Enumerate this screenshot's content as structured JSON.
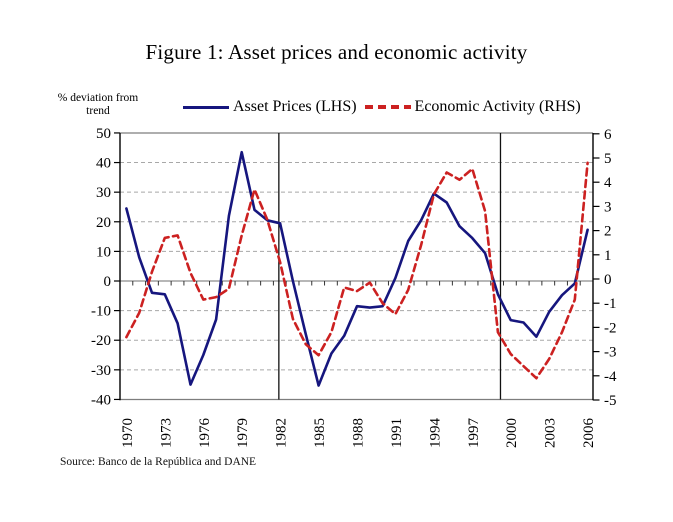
{
  "title": "Figure 1: Asset prices and economic activity",
  "y_axis_note": {
    "line1": "% deviation from",
    "line2": "trend"
  },
  "legend": {
    "items": [
      {
        "label": "Asset Prices (LHS)",
        "color": "#16167e",
        "style": "solid"
      },
      {
        "label": "Economic Activity (RHS)",
        "color": "#cc2121",
        "style": "dashed"
      }
    ]
  },
  "source_note": "Source: Banco de la República and DANE",
  "chart_data": {
    "type": "line",
    "title": "Figure 1: Asset prices and economic activity",
    "ylabel_left": "% deviation from trend",
    "x": [
      1970,
      1971,
      1972,
      1973,
      1974,
      1975,
      1976,
      1977,
      1978,
      1979,
      1980,
      1981,
      1982,
      1983,
      1984,
      1985,
      1986,
      1987,
      1988,
      1989,
      1990,
      1991,
      1992,
      1993,
      1994,
      1995,
      1996,
      1997,
      1998,
      1999,
      2000,
      2001,
      2002,
      2003,
      2004,
      2005,
      2006
    ],
    "x_tick_labels": [
      "1970",
      "1973",
      "1976",
      "1979",
      "1982",
      "1985",
      "1988",
      "1991",
      "1994",
      "1997",
      "2000",
      "2003",
      "2006"
    ],
    "series": [
      {
        "name": "Asset Prices (LHS)",
        "axis": "left",
        "color": "#16167e",
        "style": "solid",
        "values": [
          24.5,
          8,
          -4,
          -4.5,
          -14.3,
          -35,
          -25,
          -13,
          22,
          43.5,
          24,
          20.5,
          19.5,
          0,
          -18,
          -35.3,
          -24.5,
          -18.5,
          -8.5,
          -9,
          -8.5,
          1,
          13.5,
          20.5,
          29.5,
          26.5,
          18.5,
          14.5,
          9.4,
          -4.5,
          -13.2,
          -14,
          -18.8,
          -10.4,
          -4.8,
          -0.8,
          17.3
        ]
      },
      {
        "name": "Economic Activity (RHS)",
        "axis": "right",
        "color": "#cc2121",
        "style": "dashed",
        "values": [
          -2.4,
          -1.4,
          0.3,
          1.7,
          1.8,
          0.25,
          -0.85,
          -0.75,
          -0.4,
          1.8,
          3.7,
          2.45,
          0.7,
          -1.65,
          -2.7,
          -3.15,
          -2.2,
          -0.35,
          -0.5,
          -0.15,
          -1.0,
          -1.45,
          -0.45,
          1.4,
          3.5,
          4.4,
          4.1,
          4.55,
          2.8,
          -2.2,
          -3.1,
          -3.6,
          -4.1,
          -3.3,
          -2.2,
          -0.85,
          4.8
        ]
      }
    ],
    "left_axis": {
      "min": -40,
      "max": 50,
      "step": 10,
      "tick_values": [
        50,
        40,
        30,
        20,
        10,
        0,
        -10,
        -20,
        -30,
        -40
      ]
    },
    "right_axis": {
      "min": -5,
      "max": 6,
      "step": 1,
      "tick_values": [
        6,
        5,
        4,
        3,
        2,
        1,
        0,
        -1,
        -2,
        -3,
        -4,
        -5
      ]
    },
    "vlines": [
      1981.9,
      1999.2
    ],
    "grid": {
      "horizontal": "dashed",
      "color": "#a8a8a8",
      "zero_line": true
    },
    "legend_position": "top"
  }
}
